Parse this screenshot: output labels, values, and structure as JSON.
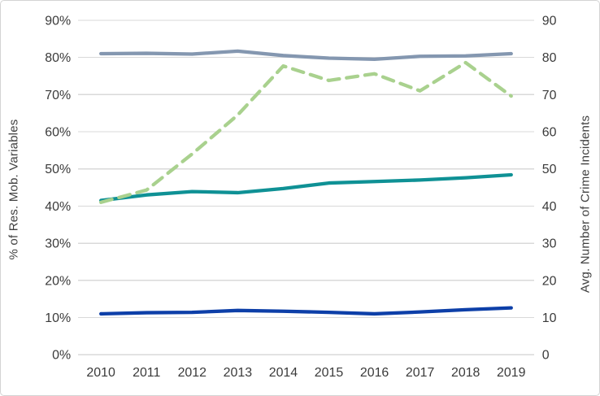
{
  "chart": {
    "left_axis": {
      "title": "% of Res. Mob. Variables",
      "tick_labels": [
        "0%",
        "10%",
        "20%",
        "30%",
        "40%",
        "50%",
        "60%",
        "70%",
        "80%",
        "90%"
      ],
      "tick_values": [
        0,
        10,
        20,
        30,
        40,
        50,
        60,
        70,
        80,
        90
      ]
    },
    "right_axis": {
      "title": "Avg. Number of Crime Incidents",
      "tick_labels": [
        "0",
        "10",
        "20",
        "30",
        "40",
        "50",
        "60",
        "70",
        "80",
        "90"
      ],
      "tick_values": [
        0,
        10,
        20,
        30,
        40,
        50,
        60,
        70,
        80,
        90
      ]
    },
    "x_axis": {
      "tick_labels": [
        "2010",
        "2011",
        "2012",
        "2013",
        "2014",
        "2015",
        "2016",
        "2017",
        "2018",
        "2019"
      ]
    },
    "colors": {
      "gridline": "#d9d9d9",
      "text": "#3a3a3a",
      "background": "#ffffff"
    }
  },
  "chart_data": {
    "type": "line",
    "title": "",
    "xlabel": "",
    "ylabel_left": "% of Res. Mob. Variables",
    "ylabel_right": "Avg. Number of Crime Incidents",
    "ylim": [
      0,
      90
    ],
    "grid": true,
    "legend": false,
    "x": [
      2010,
      2011,
      2012,
      2013,
      2014,
      2015,
      2016,
      2017,
      2018,
      2019
    ],
    "series": [
      {
        "name": "blue-gray-solid-line",
        "color": "#8497B0",
        "style": "solid",
        "values": [
          81.0,
          81.1,
          80.9,
          81.7,
          80.5,
          79.8,
          79.5,
          80.3,
          80.4,
          81.0
        ]
      },
      {
        "name": "teal-solid-line",
        "color": "#0F9195",
        "style": "solid",
        "values": [
          41.5,
          43.0,
          43.9,
          43.6,
          44.7,
          46.2,
          46.6,
          47.0,
          47.6,
          48.4
        ]
      },
      {
        "name": "navy-solid-line",
        "color": "#0D3FA8",
        "style": "solid",
        "values": [
          11.0,
          11.3,
          11.4,
          11.9,
          11.7,
          11.4,
          11.0,
          11.5,
          12.1,
          12.6
        ]
      },
      {
        "name": "green-dashed-line",
        "color": "#A9D18E",
        "style": "dashed",
        "values": [
          41.0,
          44.3,
          54.0,
          64.5,
          77.7,
          73.8,
          75.6,
          71.0,
          78.6,
          69.6
        ]
      }
    ]
  }
}
